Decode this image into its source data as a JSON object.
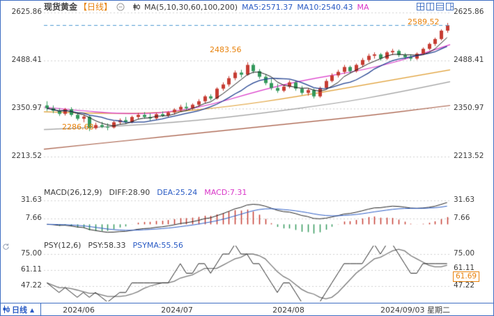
{
  "colors": {
    "accent_blue": "#3f6ec2",
    "text_blue": "#2a5bc4",
    "orange": "#e8820c",
    "magenta": "#d935c8",
    "up": "#c63c32",
    "down": "#33995c",
    "ma5": "#1a1a1a",
    "ma10": "#1f3f8f",
    "ma30": "#d935c8",
    "ma60": "#de9b2d",
    "ma100": "#9a9a9a",
    "ma200": "#a2543c",
    "grid": "#cfcfcf",
    "price_line": "#4e9ad0",
    "axis_text": "#3c3c3c"
  },
  "header": {
    "title": "现货黄金",
    "period_tag": "【日线】",
    "ma_group": "MA(5,10,30,60,100,200)",
    "ma5": "MA5:2571.37",
    "ma10": "MA10:2540.43",
    "ma_more": "MA"
  },
  "main_axis": {
    "labels": [
      "2625.86",
      "2488.41",
      "2350.97",
      "2213.52"
    ]
  },
  "annotations": {
    "last": "2589.52",
    "high": "2483.56",
    "low": "2286.68"
  },
  "macd_panel": {
    "label": "MACD(26,12,9)",
    "diff": "DIFF:28.90",
    "dea": "DEA:25.24",
    "macd": "MACD:7.31",
    "axis": [
      "31.63",
      "7.66"
    ]
  },
  "psy_panel": {
    "label": "PSY(12,6)",
    "psy": "PSY:58.33",
    "psyma": "PSYMA:55.56",
    "axis": [
      "75.00",
      "61.11",
      "47.22"
    ],
    "last_badge": "61.69"
  },
  "bottom_bar": {
    "period": "日线",
    "arrow": "▲",
    "dates": [
      "2024/06",
      "2024/07",
      "2024/08"
    ],
    "current_date": "2024/09/03 星期二"
  },
  "chart_data": {
    "type": "candlestick",
    "title": "现货黄金 日线 (Spot Gold, Daily)",
    "x_labels": [
      "2024/06",
      "2024/07",
      "2024/08",
      "2024/09/03"
    ],
    "y_gridlines_main": [
      2625.86,
      2488.41,
      2350.97,
      2213.52
    ],
    "y_range_main": [
      2138,
      2625.86
    ],
    "last_price_line": 2589.52,
    "key_points": {
      "low": 2286.68,
      "high": 2483.56,
      "last_close": 2589.52
    },
    "ma_values_header": {
      "ma5": 2571.37,
      "ma10": 2540.43
    },
    "candles_ohlc": [
      [
        2360,
        2372,
        2344,
        2352
      ],
      [
        2352,
        2360,
        2338,
        2345
      ],
      [
        2345,
        2352,
        2330,
        2336
      ],
      [
        2336,
        2353,
        2331,
        2349
      ],
      [
        2349,
        2355,
        2328,
        2333
      ],
      [
        2333,
        2341,
        2317,
        2322
      ],
      [
        2322,
        2334,
        2312,
        2328
      ],
      [
        2328,
        2333,
        2286.68,
        2295
      ],
      [
        2295,
        2311,
        2291,
        2304
      ],
      [
        2304,
        2313,
        2295,
        2299
      ],
      [
        2299,
        2309,
        2289,
        2297
      ],
      [
        2297,
        2316,
        2294,
        2312
      ],
      [
        2312,
        2323,
        2305,
        2318
      ],
      [
        2318,
        2327,
        2307,
        2313
      ],
      [
        2313,
        2331,
        2309,
        2327
      ],
      [
        2327,
        2339,
        2321,
        2333
      ],
      [
        2333,
        2341,
        2322,
        2327
      ],
      [
        2327,
        2337,
        2317,
        2323
      ],
      [
        2323,
        2339,
        2319,
        2335
      ],
      [
        2335,
        2343,
        2327,
        2331
      ],
      [
        2331,
        2344,
        2326,
        2340
      ],
      [
        2340,
        2352,
        2334,
        2348
      ],
      [
        2348,
        2362,
        2342,
        2356
      ],
      [
        2356,
        2368,
        2346,
        2352
      ],
      [
        2352,
        2366,
        2347,
        2362
      ],
      [
        2362,
        2378,
        2356,
        2372
      ],
      [
        2372,
        2390,
        2366,
        2386
      ],
      [
        2386,
        2392,
        2374,
        2380
      ],
      [
        2380,
        2412,
        2377,
        2408
      ],
      [
        2408,
        2426,
        2402,
        2420
      ],
      [
        2420,
        2444,
        2414,
        2438
      ],
      [
        2438,
        2460,
        2432,
        2454
      ],
      [
        2454,
        2462,
        2440,
        2448
      ],
      [
        2448,
        2483.56,
        2445,
        2476
      ],
      [
        2476,
        2481,
        2452,
        2458
      ],
      [
        2458,
        2464,
        2436,
        2442
      ],
      [
        2442,
        2450,
        2418,
        2424
      ],
      [
        2424,
        2436,
        2404,
        2410
      ],
      [
        2410,
        2422,
        2396,
        2402
      ],
      [
        2402,
        2420,
        2398,
        2414
      ],
      [
        2414,
        2432,
        2409,
        2426
      ],
      [
        2426,
        2431,
        2402,
        2408
      ],
      [
        2408,
        2416,
        2390,
        2396
      ],
      [
        2396,
        2410,
        2388,
        2404
      ],
      [
        2404,
        2408,
        2380,
        2386
      ],
      [
        2386,
        2414,
        2382,
        2410
      ],
      [
        2410,
        2436,
        2406,
        2430
      ],
      [
        2430,
        2452,
        2426,
        2446
      ],
      [
        2446,
        2462,
        2440,
        2456
      ],
      [
        2456,
        2476,
        2450,
        2470
      ],
      [
        2470,
        2474,
        2452,
        2458
      ],
      [
        2458,
        2480,
        2454,
        2476
      ],
      [
        2476,
        2496,
        2470,
        2490
      ],
      [
        2490,
        2508,
        2484,
        2502
      ],
      [
        2502,
        2512,
        2494,
        2506
      ],
      [
        2506,
        2510,
        2488,
        2494
      ],
      [
        2494,
        2516,
        2490,
        2512
      ],
      [
        2512,
        2522,
        2504,
        2516
      ],
      [
        2516,
        2520,
        2498,
        2504
      ],
      [
        2504,
        2510,
        2492,
        2498
      ],
      [
        2498,
        2506,
        2488,
        2494
      ],
      [
        2494,
        2512,
        2490,
        2508
      ],
      [
        2508,
        2526,
        2504,
        2522
      ],
      [
        2522,
        2540,
        2518,
        2536
      ],
      [
        2536,
        2554,
        2530,
        2550
      ],
      [
        2550,
        2578,
        2546,
        2574
      ],
      [
        2574,
        2596,
        2568,
        2589.52
      ]
    ],
    "overlays_sampled": {
      "ma30": [
        2355,
        2346,
        2338,
        2336,
        2344,
        2364,
        2392,
        2418,
        2438,
        2454,
        2474,
        2502,
        2534
      ],
      "ma60": [
        2342,
        2339,
        2337,
        2338,
        2343,
        2352,
        2364,
        2378,
        2394,
        2411,
        2428,
        2445,
        2462
      ],
      "ma100": [
        2291,
        2295,
        2300,
        2306,
        2313,
        2322,
        2333,
        2345,
        2358,
        2372,
        2389,
        2408,
        2428
      ],
      "ma200": [
        2235,
        2245,
        2255,
        2265,
        2275,
        2285,
        2295,
        2305,
        2315,
        2325,
        2336,
        2348,
        2360
      ]
    },
    "macd": {
      "params": [
        26,
        12,
        9
      ],
      "gridlines": [
        31.63,
        7.66
      ],
      "diff_last": 28.9,
      "dea_last": 25.24,
      "macd_last": 7.31
    },
    "psy": {
      "params": [
        12,
        6
      ],
      "gridlines": [
        75.0,
        61.11,
        47.22
      ],
      "psy_last": 58.33,
      "psyma_last": 55.56,
      "right_axis_value": 61.69
    }
  }
}
